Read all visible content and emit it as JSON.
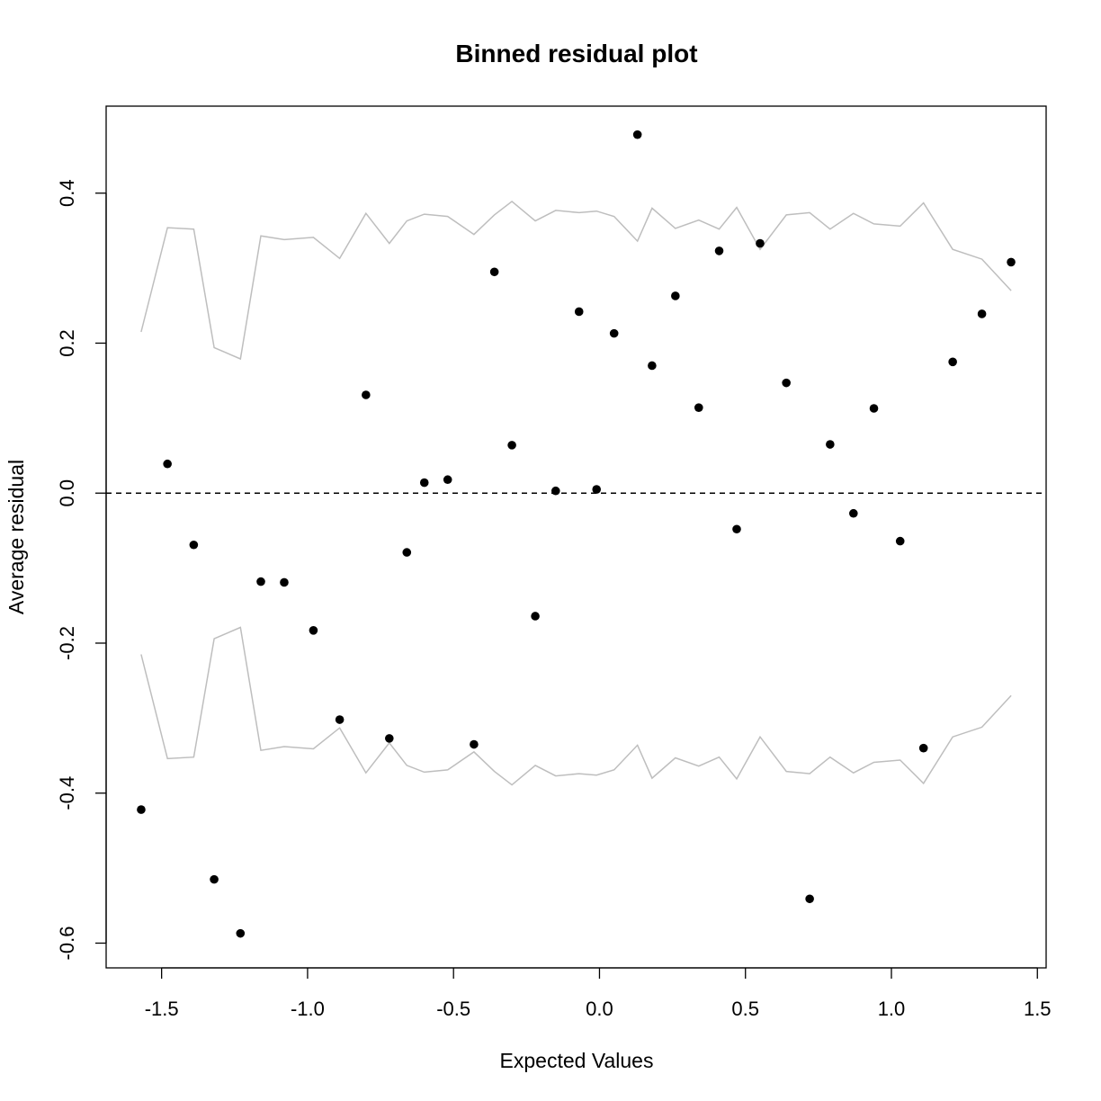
{
  "chart_data": {
    "type": "scatter",
    "title": "Binned residual plot",
    "xlabel": "Expected Values",
    "ylabel": "Average residual",
    "xlim": [
      -1.69,
      1.53
    ],
    "ylim": [
      -0.633,
      0.516
    ],
    "x_ticks": [
      -1.5,
      -1.0,
      -0.5,
      0.0,
      0.5,
      1.0,
      1.5
    ],
    "x_tick_labels": [
      "-1.5",
      "-1.0",
      "-0.5",
      "0.0",
      "0.5",
      "1.0",
      "1.5"
    ],
    "y_ticks": [
      -0.6,
      -0.4,
      -0.2,
      0.0,
      0.2,
      0.4
    ],
    "y_tick_labels": [
      "-0.6",
      "-0.4",
      "-0.2",
      "0.0",
      "0.2",
      "0.4"
    ],
    "reference_line": 0.0,
    "colors": {
      "points": "#000000",
      "bounds": "#bebebe",
      "reference": "#000000"
    },
    "points": {
      "x": [
        -1.57,
        -1.48,
        -1.39,
        -1.32,
        -1.23,
        -1.16,
        -1.08,
        -0.98,
        -0.89,
        -0.8,
        -0.72,
        -0.66,
        -0.6,
        -0.52,
        -0.43,
        -0.36,
        -0.3,
        -0.22,
        -0.15,
        -0.07,
        -0.01,
        0.05,
        0.13,
        0.18,
        0.26,
        0.34,
        0.41,
        0.47,
        0.55,
        0.64,
        0.72,
        0.79,
        0.87,
        0.94,
        1.03,
        1.11,
        1.21,
        1.31,
        1.41
      ],
      "y": [
        -0.422,
        0.039,
        -0.069,
        -0.515,
        -0.587,
        -0.118,
        -0.119,
        -0.183,
        -0.302,
        0.131,
        -0.327,
        -0.079,
        0.014,
        0.018,
        -0.335,
        0.295,
        0.064,
        -0.164,
        0.003,
        0.242,
        0.005,
        0.213,
        0.478,
        0.17,
        0.263,
        0.114,
        0.323,
        -0.048,
        0.333,
        0.147,
        -0.541,
        0.065,
        -0.027,
        0.113,
        -0.064,
        -0.34,
        0.175,
        0.239,
        0.308
      ]
    },
    "upper_bound": {
      "x": [
        -1.57,
        -1.48,
        -1.39,
        -1.32,
        -1.23,
        -1.16,
        -1.08,
        -0.98,
        -0.89,
        -0.8,
        -0.72,
        -0.66,
        -0.6,
        -0.52,
        -0.43,
        -0.36,
        -0.3,
        -0.22,
        -0.15,
        -0.07,
        -0.01,
        0.05,
        0.13,
        0.18,
        0.26,
        0.34,
        0.41,
        0.47,
        0.55,
        0.64,
        0.72,
        0.79,
        0.87,
        0.94,
        1.03,
        1.11,
        1.21,
        1.31,
        1.41
      ],
      "y": [
        0.215,
        0.354,
        0.352,
        0.194,
        0.179,
        0.343,
        0.338,
        0.341,
        0.313,
        0.373,
        0.333,
        0.363,
        0.372,
        0.369,
        0.345,
        0.371,
        0.389,
        0.363,
        0.377,
        0.374,
        0.376,
        0.369,
        0.336,
        0.38,
        0.353,
        0.364,
        0.352,
        0.381,
        0.325,
        0.371,
        0.374,
        0.352,
        0.373,
        0.359,
        0.356,
        0.387,
        0.325,
        0.312,
        0.27
      ]
    },
    "lower_bound": {
      "x": [
        -1.57,
        -1.48,
        -1.39,
        -1.32,
        -1.23,
        -1.16,
        -1.08,
        -0.98,
        -0.89,
        -0.8,
        -0.72,
        -0.66,
        -0.6,
        -0.52,
        -0.43,
        -0.36,
        -0.3,
        -0.22,
        -0.15,
        -0.07,
        -0.01,
        0.05,
        0.13,
        0.18,
        0.26,
        0.34,
        0.41,
        0.47,
        0.55,
        0.64,
        0.72,
        0.79,
        0.87,
        0.94,
        1.03,
        1.11,
        1.21,
        1.31,
        1.41
      ],
      "y": [
        -0.215,
        -0.354,
        -0.352,
        -0.194,
        -0.179,
        -0.343,
        -0.338,
        -0.341,
        -0.313,
        -0.373,
        -0.333,
        -0.363,
        -0.372,
        -0.369,
        -0.345,
        -0.371,
        -0.389,
        -0.363,
        -0.377,
        -0.374,
        -0.376,
        -0.369,
        -0.336,
        -0.38,
        -0.353,
        -0.364,
        -0.352,
        -0.381,
        -0.325,
        -0.371,
        -0.374,
        -0.352,
        -0.373,
        -0.359,
        -0.356,
        -0.387,
        -0.325,
        -0.312,
        -0.27
      ]
    }
  }
}
